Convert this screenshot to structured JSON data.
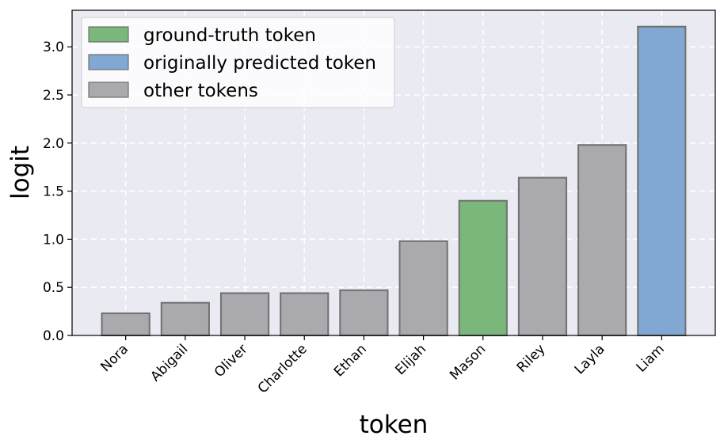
{
  "chart_data": {
    "type": "bar",
    "title": "",
    "xlabel": "token",
    "ylabel": "logit",
    "categories": [
      "Nora",
      "Abigail",
      "Oliver",
      "Charlotte",
      "Ethan",
      "Elijah",
      "Mason",
      "Riley",
      "Layla",
      "Liam"
    ],
    "values": [
      0.23,
      0.34,
      0.44,
      0.44,
      0.47,
      0.98,
      1.4,
      1.64,
      1.98,
      3.21
    ],
    "bar_kind": [
      "other",
      "other",
      "other",
      "other",
      "other",
      "other",
      "ground_truth",
      "other",
      "other",
      "predicted"
    ],
    "ylim": [
      0,
      3.38
    ],
    "yticks": [
      "0.0",
      "0.5",
      "1.0",
      "1.5",
      "2.0",
      "2.5",
      "3.0"
    ],
    "ytick_values": [
      0,
      0.5,
      1.0,
      1.5,
      2.0,
      2.5,
      3.0
    ],
    "grid": true,
    "legend_position": "top-left",
    "legend": [
      {
        "key": "ground_truth",
        "label": "ground-truth token",
        "color": "#7bb77b"
      },
      {
        "key": "predicted",
        "label": "originally predicted token",
        "color": "#80a8d2"
      },
      {
        "key": "other",
        "label": "other tokens",
        "color": "#a9a9ae"
      }
    ],
    "colors": {
      "background": "#eaeaf2",
      "bar_edge": "#707070",
      "ground_truth": "#7bb77b",
      "predicted": "#80a8d2",
      "other": "#a9a9ae"
    }
  }
}
